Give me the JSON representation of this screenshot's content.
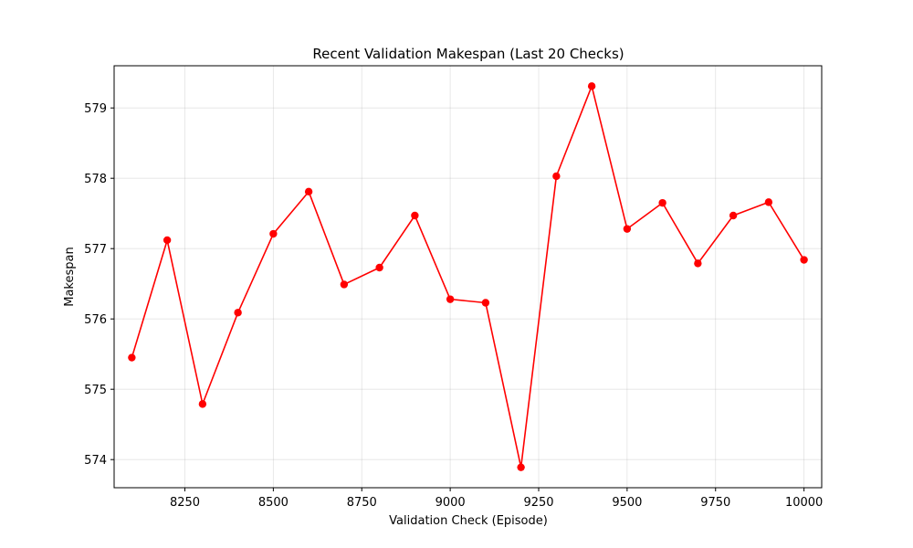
{
  "chart_data": {
    "type": "line",
    "title": "Recent Validation Makespan (Last 20 Checks)",
    "xlabel": "Validation Check (Episode)",
    "ylabel": "Makespan",
    "xlim": [
      8050,
      10050
    ],
    "ylim": [
      573.6,
      579.6
    ],
    "xticks": [
      8250,
      8500,
      8750,
      9000,
      9250,
      9500,
      9750,
      10000
    ],
    "yticks": [
      574,
      575,
      576,
      577,
      578,
      579
    ],
    "grid": true,
    "series": [
      {
        "color": "#ff0000",
        "x": [
          8100,
          8200,
          8300,
          8400,
          8500,
          8600,
          8700,
          8800,
          8900,
          9000,
          9100,
          9200,
          9300,
          9400,
          9500,
          9600,
          9700,
          9800,
          9900,
          10000
        ],
        "y": [
          575.45,
          577.12,
          574.79,
          576.09,
          577.21,
          577.81,
          576.49,
          576.73,
          577.47,
          576.28,
          576.23,
          573.89,
          578.03,
          579.31,
          577.28,
          577.65,
          576.79,
          577.47,
          577.66,
          576.84
        ]
      }
    ]
  }
}
